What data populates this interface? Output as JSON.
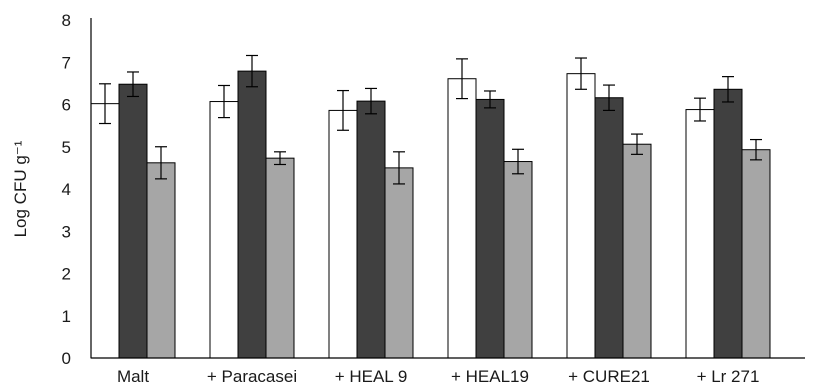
{
  "chart_data": {
    "type": "bar",
    "title": "",
    "xlabel": "",
    "ylabel": "Log CFU g⁻¹",
    "ylim": [
      0,
      8
    ],
    "yticks": [
      0,
      1,
      2,
      3,
      4,
      5,
      6,
      7,
      8
    ],
    "grid": false,
    "legend": "none",
    "categories": [
      "Malt",
      "+ Paracasei",
      "+ HEAL 9",
      "+ HEAL19",
      "+ CURE21",
      "+ Lr 271"
    ],
    "series": [
      {
        "fill": "#ffffff",
        "values": [
          6.02,
          6.07,
          5.86,
          6.61,
          6.73,
          5.88
        ],
        "errors": [
          0.47,
          0.38,
          0.47,
          0.47,
          0.37,
          0.27
        ]
      },
      {
        "fill": "#404040",
        "values": [
          6.48,
          6.79,
          6.08,
          6.12,
          6.16,
          6.36
        ],
        "errors": [
          0.29,
          0.37,
          0.3,
          0.2,
          0.3,
          0.3
        ]
      },
      {
        "fill": "#a6a6a6",
        "values": [
          4.62,
          4.73,
          4.5,
          4.65,
          5.06,
          4.93
        ],
        "errors": [
          0.38,
          0.15,
          0.38,
          0.29,
          0.24,
          0.24
        ]
      }
    ]
  }
}
